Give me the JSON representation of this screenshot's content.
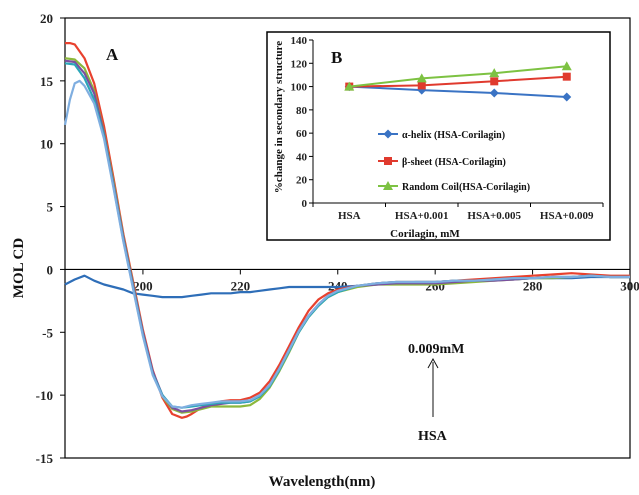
{
  "chart_data": [
    {
      "type": "line",
      "panel": "A",
      "xlabel": "Wavelength(nm)",
      "ylabel": "MOL CD",
      "xlim": [
        184,
        300
      ],
      "ylim": [
        -15,
        20
      ],
      "xticks": [
        200,
        220,
        240,
        260,
        280,
        300
      ],
      "yticks": [
        20,
        15,
        10,
        5,
        0,
        -5,
        -10,
        -15
      ],
      "grid": false,
      "legend": "none",
      "annotations": [
        {
          "text": "0.009mM"
        },
        {
          "text": "HSA"
        }
      ],
      "series": [
        {
          "color": "#2E6EB8",
          "x": [
            184,
            186,
            188,
            190,
            192,
            194,
            196,
            198,
            200,
            202,
            204,
            206,
            208,
            210,
            212,
            214,
            216,
            218,
            220,
            222,
            224,
            226,
            228,
            230,
            232,
            234,
            236,
            238,
            240,
            244,
            248,
            252,
            256,
            260,
            264,
            268,
            272,
            276,
            280,
            284,
            288,
            292,
            296,
            300
          ],
          "y": [
            -1.2,
            -0.8,
            -0.5,
            -0.9,
            -1.2,
            -1.4,
            -1.6,
            -1.9,
            -2.0,
            -2.1,
            -2.2,
            -2.2,
            -2.2,
            -2.1,
            -2.0,
            -1.9,
            -1.9,
            -1.9,
            -1.8,
            -1.8,
            -1.7,
            -1.6,
            -1.5,
            -1.4,
            -1.4,
            -1.4,
            -1.4,
            -1.4,
            -1.4,
            -1.3,
            -1.2,
            -1.1,
            -1.0,
            -1.0,
            -0.9,
            -0.9,
            -0.8,
            -0.8,
            -0.7,
            -0.7,
            -0.7,
            -0.6,
            -0.6,
            -0.6
          ]
        },
        {
          "color": "#E8412E",
          "x": [
            184,
            185,
            186,
            188,
            190,
            192,
            194,
            196,
            198,
            200,
            202,
            204,
            206,
            208,
            209,
            210,
            212,
            214,
            216,
            218,
            220,
            222,
            224,
            226,
            228,
            230,
            232,
            234,
            236,
            238,
            240,
            244,
            248,
            252,
            256,
            260,
            264,
            268,
            272,
            276,
            280,
            284,
            288,
            292,
            296,
            300
          ],
          "y": [
            18.0,
            18.0,
            17.9,
            16.8,
            14.8,
            11.4,
            7.2,
            2.8,
            -1.0,
            -4.8,
            -8.0,
            -10.2,
            -11.5,
            -11.8,
            -11.7,
            -11.5,
            -11.0,
            -10.7,
            -10.5,
            -10.4,
            -10.4,
            -10.2,
            -9.8,
            -8.9,
            -7.6,
            -6.1,
            -4.6,
            -3.3,
            -2.4,
            -1.9,
            -1.6,
            -1.3,
            -1.1,
            -1.0,
            -1.0,
            -1.0,
            -0.9,
            -0.8,
            -0.7,
            -0.6,
            -0.5,
            -0.4,
            -0.3,
            -0.4,
            -0.5,
            -0.5
          ]
        },
        {
          "color": "#8CB83C",
          "x": [
            184,
            186,
            188,
            190,
            192,
            194,
            196,
            198,
            200,
            202,
            204,
            206,
            208,
            210,
            212,
            214,
            216,
            218,
            220,
            222,
            224,
            226,
            228,
            230,
            232,
            234,
            236,
            238,
            240,
            244,
            248,
            252,
            256,
            260,
            264,
            268,
            272,
            276,
            280,
            284,
            288,
            292,
            296,
            300
          ],
          "y": [
            16.8,
            16.7,
            16.0,
            14.2,
            10.9,
            6.9,
            2.6,
            -1.2,
            -5.0,
            -8.2,
            -10.1,
            -11.1,
            -11.4,
            -11.3,
            -11.1,
            -10.9,
            -10.9,
            -10.9,
            -10.9,
            -10.8,
            -10.3,
            -9.4,
            -8.1,
            -6.6,
            -5.0,
            -3.8,
            -2.9,
            -2.2,
            -1.8,
            -1.4,
            -1.2,
            -1.2,
            -1.2,
            -1.2,
            -1.1,
            -1.0,
            -0.9,
            -0.8,
            -0.7,
            -0.7,
            -0.6,
            -0.5,
            -0.6,
            -0.6
          ]
        },
        {
          "color": "#7B4FA0",
          "x": [
            184,
            186,
            188,
            190,
            192,
            194,
            196,
            198,
            200,
            202,
            204,
            206,
            208,
            210,
            212,
            214,
            216,
            218,
            220,
            222,
            224,
            226,
            228,
            230,
            232,
            234,
            236,
            238,
            240,
            244,
            248,
            252,
            256,
            260,
            264,
            268,
            272,
            276,
            280,
            284,
            288,
            292,
            296,
            300
          ],
          "y": [
            16.6,
            16.5,
            15.6,
            14.0,
            10.8,
            6.7,
            2.5,
            -1.3,
            -5.0,
            -8.1,
            -10.0,
            -11.0,
            -11.3,
            -11.2,
            -11.0,
            -10.8,
            -10.7,
            -10.6,
            -10.6,
            -10.5,
            -10.0,
            -9.2,
            -7.9,
            -6.4,
            -4.9,
            -3.7,
            -2.8,
            -2.1,
            -1.7,
            -1.3,
            -1.2,
            -1.1,
            -1.1,
            -1.1,
            -1.0,
            -0.9,
            -0.9,
            -0.8,
            -0.7,
            -0.6,
            -0.6,
            -0.5,
            -0.6,
            -0.6
          ]
        },
        {
          "color": "#2BA6B8",
          "x": [
            184,
            186,
            188,
            190,
            192,
            194,
            196,
            198,
            200,
            202,
            204,
            206,
            208,
            210,
            212,
            214,
            216,
            218,
            220,
            222,
            224,
            226,
            228,
            230,
            232,
            234,
            236,
            238,
            240,
            244,
            248,
            252,
            256,
            260,
            264,
            268,
            272,
            276,
            280,
            284,
            288,
            292,
            296,
            300
          ],
          "y": [
            16.4,
            16.3,
            15.2,
            13.5,
            10.6,
            6.5,
            2.3,
            -1.5,
            -5.2,
            -8.3,
            -10.0,
            -10.9,
            -11.0,
            -10.9,
            -10.8,
            -10.7,
            -10.6,
            -10.6,
            -10.6,
            -10.5,
            -10.1,
            -9.3,
            -8.0,
            -6.5,
            -5.0,
            -3.8,
            -2.9,
            -2.2,
            -1.8,
            -1.3,
            -1.1,
            -1.0,
            -1.0,
            -1.0,
            -0.9,
            -0.9,
            -0.8,
            -0.7,
            -0.7,
            -0.6,
            -0.6,
            -0.5,
            -0.6,
            -0.6
          ]
        },
        {
          "color": "#7FAEE0",
          "x": [
            184,
            185,
            186,
            187,
            188,
            190,
            192,
            194,
            196,
            198,
            200,
            202,
            204,
            206,
            208,
            210,
            212,
            214,
            216,
            218,
            220,
            222,
            224,
            226,
            228,
            230,
            232,
            234,
            236,
            238,
            240,
            244,
            248,
            252,
            256,
            260,
            264,
            268,
            272,
            276,
            280,
            284,
            288,
            292,
            296,
            300
          ],
          "y": [
            11.5,
            13.5,
            14.8,
            15.0,
            14.6,
            13.2,
            10.4,
            6.4,
            2.2,
            -1.6,
            -5.3,
            -8.4,
            -10.1,
            -10.9,
            -11.0,
            -10.8,
            -10.7,
            -10.6,
            -10.5,
            -10.5,
            -10.5,
            -10.4,
            -10.0,
            -9.2,
            -7.9,
            -6.4,
            -4.9,
            -3.7,
            -2.8,
            -2.1,
            -1.7,
            -1.3,
            -1.1,
            -1.0,
            -1.0,
            -1.0,
            -0.9,
            -0.9,
            -0.8,
            -0.7,
            -0.7,
            -0.6,
            -0.6,
            -0.5,
            -0.6,
            -0.6
          ]
        }
      ]
    },
    {
      "type": "line",
      "panel": "B",
      "xlabel": "Corilagin, mM",
      "ylabel": "%change in secondary structure",
      "categories": [
        "HSA",
        "HSA+0.001",
        "HSA+0.005",
        "HSA+0.009"
      ],
      "ylim": [
        0,
        140
      ],
      "yticks": [
        0,
        20,
        40,
        60,
        80,
        100,
        120,
        140
      ],
      "grid": false,
      "legend": "center-right",
      "series": [
        {
          "name": "α-helix (HSA-Corilagin)",
          "color": "#3A73C4",
          "marker": "diamond",
          "values": [
            100,
            97,
            94.5,
            91
          ]
        },
        {
          "name": "β-sheet (HSA-Corilagin)",
          "color": "#E03A2E",
          "marker": "square",
          "values": [
            100,
            101,
            104.5,
            108.5
          ]
        },
        {
          "name": "Random Coil(HSA-Corilagin)",
          "color": "#7DC242",
          "marker": "triangle",
          "values": [
            100,
            107,
            111.5,
            117.5
          ]
        }
      ]
    }
  ]
}
